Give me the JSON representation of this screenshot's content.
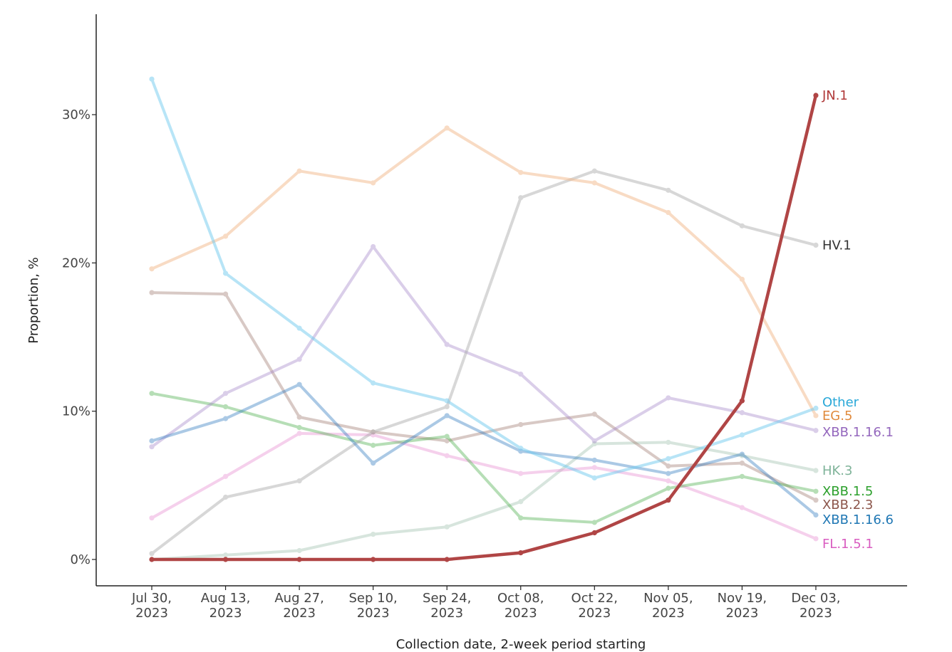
{
  "chart_data": {
    "type": "line",
    "xlabel": "Collection date, 2-week period starting",
    "ylabel": "Proportion, %",
    "ylim": [
      -1.7,
      36.5
    ],
    "yticks": [
      0,
      10,
      20,
      30
    ],
    "ytick_labels": [
      "0%",
      "10%",
      "20%",
      "30%"
    ],
    "grid": false,
    "legend": "direct labels at line ends (right)",
    "categories": [
      {
        "line1": "Jul 30,",
        "line2": "2023"
      },
      {
        "line1": "Aug 13,",
        "line2": "2023"
      },
      {
        "line1": "Aug 27,",
        "line2": "2023"
      },
      {
        "line1": "Sep 10,",
        "line2": "2023"
      },
      {
        "line1": "Sep 24,",
        "line2": "2023"
      },
      {
        "line1": "Oct 08,",
        "line2": "2023"
      },
      {
        "line1": "Oct 22,",
        "line2": "2023"
      },
      {
        "line1": "Nov 05,",
        "line2": "2023"
      },
      {
        "line1": "Nov 19,",
        "line2": "2023"
      },
      {
        "line1": "Dec 03,",
        "line2": "2023"
      }
    ],
    "series": [
      {
        "name": "HK.3",
        "color": "#9dbfac",
        "label_color": "#7fb399",
        "opacity": 0.4,
        "width": 4,
        "values": [
          0.0,
          0.3,
          0.6,
          1.7,
          2.2,
          3.9,
          7.8,
          7.9,
          7.0,
          6.0
        ]
      },
      {
        "name": "FL.1.5.1",
        "color": "#e998d6",
        "label_color": "#d95cc0",
        "opacity": 0.45,
        "width": 4,
        "values": [
          2.8,
          5.6,
          8.5,
          8.4,
          7.0,
          5.8,
          6.2,
          5.3,
          3.5,
          1.4
        ]
      },
      {
        "name": "XBB.2.3",
        "color": "#a07a70",
        "label_color": "#8c564b",
        "opacity": 0.4,
        "width": 4,
        "values": [
          18.0,
          17.9,
          9.6,
          8.6,
          8.0,
          9.1,
          9.8,
          6.3,
          6.5,
          4.0
        ]
      },
      {
        "name": "XBB.1.5",
        "color": "#4caf4c",
        "label_color": "#2ca02c",
        "opacity": 0.4,
        "width": 4,
        "values": [
          11.2,
          10.3,
          8.9,
          7.7,
          8.3,
          2.8,
          2.5,
          4.8,
          5.6,
          4.6
        ]
      },
      {
        "name": "XBB.1.16.1",
        "color": "#a586c9",
        "label_color": "#9467bd",
        "opacity": 0.4,
        "width": 4,
        "values": [
          7.6,
          11.2,
          13.5,
          21.1,
          14.5,
          12.5,
          8.0,
          10.9,
          9.9,
          8.7
        ]
      },
      {
        "name": "HV.1",
        "color": "#a8a8a8",
        "label_color": "#333333",
        "opacity": 0.45,
        "width": 4,
        "values": [
          0.4,
          4.2,
          5.3,
          8.6,
          10.3,
          24.4,
          26.2,
          24.9,
          22.5,
          21.2
        ]
      },
      {
        "name": "EG.5",
        "color": "#f3b98a",
        "label_color": "#e08a3c",
        "opacity": 0.5,
        "width": 4,
        "values": [
          19.6,
          21.8,
          26.2,
          25.4,
          29.1,
          26.1,
          25.4,
          23.4,
          18.9,
          9.7
        ]
      },
      {
        "name": "XBB.1.16.6",
        "color": "#2f7bbf",
        "label_color": "#1f77b4",
        "opacity": 0.4,
        "width": 4,
        "values": [
          8.0,
          9.5,
          11.8,
          6.5,
          9.7,
          7.3,
          6.7,
          5.8,
          7.1,
          3.0
        ]
      },
      {
        "name": "Other",
        "color": "#72cbef",
        "label_color": "#29a8d8",
        "opacity": 0.5,
        "width": 4,
        "values": [
          32.4,
          19.3,
          15.6,
          11.9,
          10.7,
          7.5,
          5.5,
          6.8,
          8.4,
          10.2
        ]
      },
      {
        "name": "JN.1",
        "color": "#b04545",
        "label_color": "#b03a3a",
        "opacity": 1.0,
        "width": 4.5,
        "values": [
          0.0,
          0.0,
          0.0,
          0.0,
          0.0,
          0.45,
          1.8,
          4.0,
          10.7,
          31.3
        ]
      }
    ],
    "end_labels": [
      {
        "name": "JN.1",
        "value": 31.3
      },
      {
        "name": "HV.1",
        "value": 21.2
      },
      {
        "name": "Other",
        "value": 10.6
      },
      {
        "name": "EG.5",
        "value": 9.7
      },
      {
        "name": "XBB.1.16.1",
        "value": 8.6
      },
      {
        "name": "HK.3",
        "value": 6.0
      },
      {
        "name": "XBB.1.5",
        "value": 4.6
      },
      {
        "name": "XBB.2.3",
        "value": 3.7
      },
      {
        "name": "XBB.1.16.6",
        "value": 2.7
      },
      {
        "name": "FL.1.5.1",
        "value": 1.05
      }
    ]
  }
}
